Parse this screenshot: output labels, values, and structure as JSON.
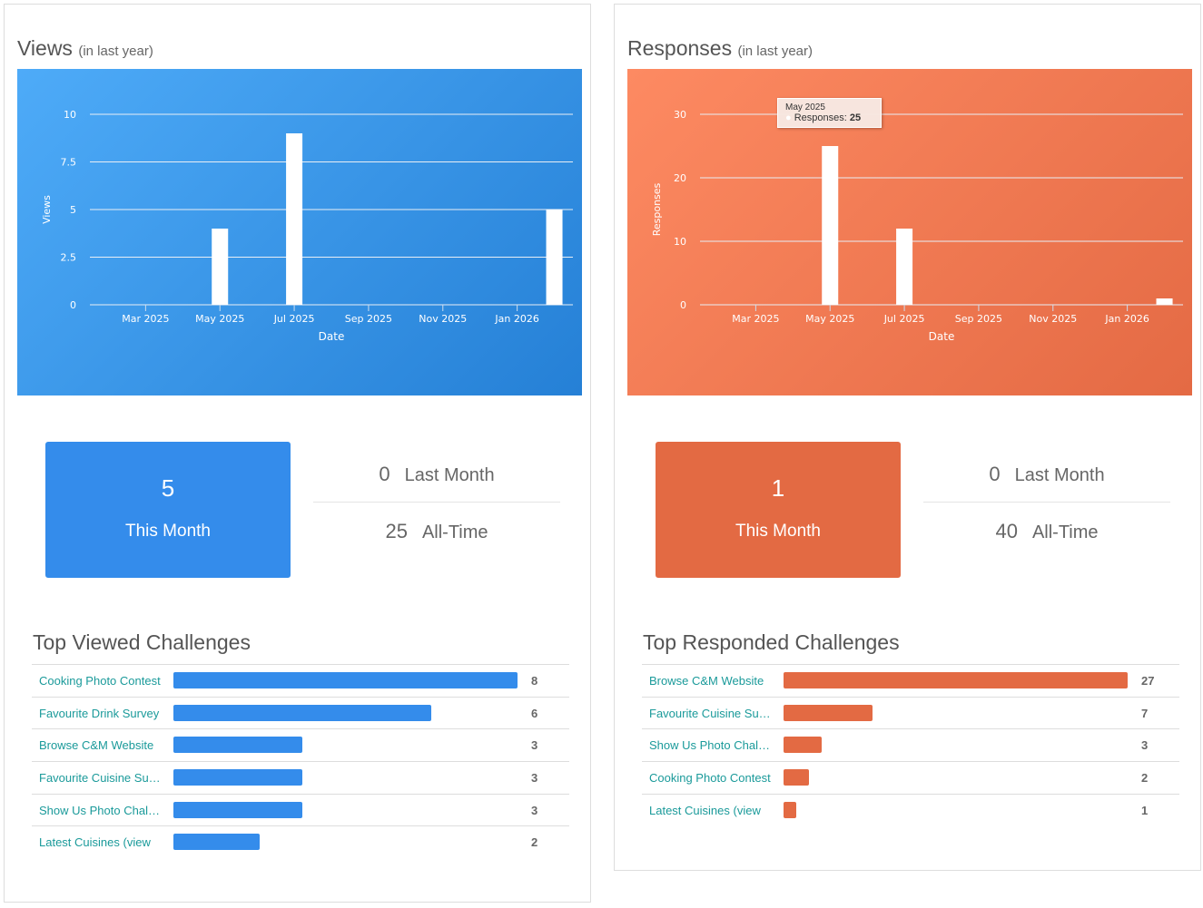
{
  "views": {
    "title": "Views",
    "subtitle": "(in last year)",
    "this_month": "5",
    "this_month_label": "This Month",
    "last_month": "0",
    "last_month_label": "Last Month",
    "all_time": "25",
    "all_time_label": "All-Time",
    "top_title": "Top Viewed Challenges",
    "color": "#348ceb",
    "top": [
      {
        "name": "Cooking Photo Contest",
        "value": 8
      },
      {
        "name": "Favourite Drink Survey",
        "value": 6
      },
      {
        "name": "Browse C&M Website",
        "value": 3
      },
      {
        "name": "Favourite Cuisine Survey",
        "value": 3
      },
      {
        "name": "Show Us Photo Challenge",
        "value": 3
      },
      {
        "name": "Latest Cuisines (view",
        "value": 2
      }
    ]
  },
  "responses": {
    "title": "Responses",
    "subtitle": "(in last year)",
    "this_month": "1",
    "this_month_label": "This Month",
    "last_month": "0",
    "last_month_label": "Last Month",
    "all_time": "40",
    "all_time_label": "All-Time",
    "top_title": "Top Responded Challenges",
    "color": "#e36a43",
    "top": [
      {
        "name": "Browse C&M Website",
        "value": 27
      },
      {
        "name": "Favourite Cuisine Survey",
        "value": 7
      },
      {
        "name": "Show Us Photo Challenge",
        "value": 3
      },
      {
        "name": "Cooking Photo Contest",
        "value": 2
      },
      {
        "name": "Latest Cuisines (view",
        "value": 1
      }
    ],
    "tooltip": {
      "title": "May 2025",
      "label": "Responses:",
      "value": "25"
    }
  },
  "chart_data": [
    {
      "type": "bar",
      "title": "Views",
      "xlabel": "Date",
      "ylabel": "Views",
      "ylim": [
        0,
        10
      ],
      "yticks": [
        "0",
        "2.5",
        "5",
        "7.5",
        "10"
      ],
      "ytick_values": [
        0,
        2.5,
        5,
        7.5,
        10
      ],
      "xticks": [
        "Mar 2025",
        "May 2025",
        "Jul 2025",
        "Sep 2025",
        "Nov 2025",
        "Jan 2026"
      ],
      "xtick_index": [
        0,
        2,
        4,
        6,
        8,
        10
      ],
      "categories": [
        "May 2025",
        "Jul 2025",
        "Feb 2026"
      ],
      "category_index": [
        2,
        4,
        11
      ],
      "values": [
        4,
        9,
        5
      ]
    },
    {
      "type": "bar",
      "title": "Responses",
      "xlabel": "Date",
      "ylabel": "Responses",
      "ylim": [
        0,
        30
      ],
      "yticks": [
        "0",
        "10",
        "20",
        "30"
      ],
      "ytick_values": [
        0,
        10,
        20,
        30
      ],
      "xticks": [
        "Mar 2025",
        "May 2025",
        "Jul 2025",
        "Sep 2025",
        "Nov 2025",
        "Jan 2026"
      ],
      "xtick_index": [
        0,
        2,
        4,
        6,
        8,
        10
      ],
      "categories": [
        "May 2025",
        "Jul 2025",
        "Feb 2026"
      ],
      "category_index": [
        2,
        4,
        11
      ],
      "values": [
        25,
        12,
        1
      ]
    }
  ]
}
